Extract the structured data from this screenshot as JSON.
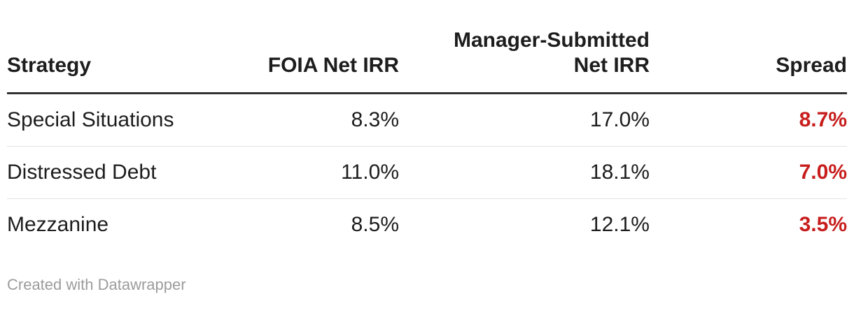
{
  "colors": {
    "text": "#1d1d1d",
    "spread_accent": "#c71e1d",
    "header_rule": "#333333",
    "row_rule": "#e3e3e3",
    "footer_text": "#9c9c9c",
    "background": "#ffffff"
  },
  "table": {
    "header": {
      "strategy": "Strategy",
      "foia": "FOIA Net IRR",
      "manager_line1": "Manager-Submitted",
      "manager_line2": "Net IRR",
      "spread": "Spread"
    },
    "rows": [
      {
        "strategy": "Special Situations",
        "foia": "8.3%",
        "manager": "17.0%",
        "spread": "8.7%"
      },
      {
        "strategy": "Distressed Debt",
        "foia": "11.0%",
        "manager": "18.1%",
        "spread": "7.0%"
      },
      {
        "strategy": "Mezzanine",
        "foia": "8.5%",
        "manager": "12.1%",
        "spread": "3.5%"
      }
    ]
  },
  "footer": {
    "attribution": "Created with Datawrapper"
  },
  "chart_data": {
    "type": "table",
    "columns": [
      "Strategy",
      "FOIA Net IRR",
      "Manager-Submitted Net IRR",
      "Spread"
    ],
    "rows": [
      [
        "Special Situations",
        "8.3%",
        "17.0%",
        "8.7%"
      ],
      [
        "Distressed Debt",
        "11.0%",
        "18.1%",
        "7.0%"
      ],
      [
        "Mezzanine",
        "8.5%",
        "12.1%",
        "3.5%"
      ]
    ],
    "numeric": {
      "categories": [
        "Special Situations",
        "Distressed Debt",
        "Mezzanine"
      ],
      "foia_net_irr_pct": [
        8.3,
        11.0,
        8.5
      ],
      "manager_submitted_net_irr_pct": [
        17.0,
        18.1,
        12.1
      ],
      "spread_pct": [
        8.7,
        7.0,
        3.5
      ]
    },
    "layout_hints": {
      "spread_column_style": "bold red",
      "header_alignment": "first column left, others right",
      "grid": "horizontal row separators only"
    }
  }
}
